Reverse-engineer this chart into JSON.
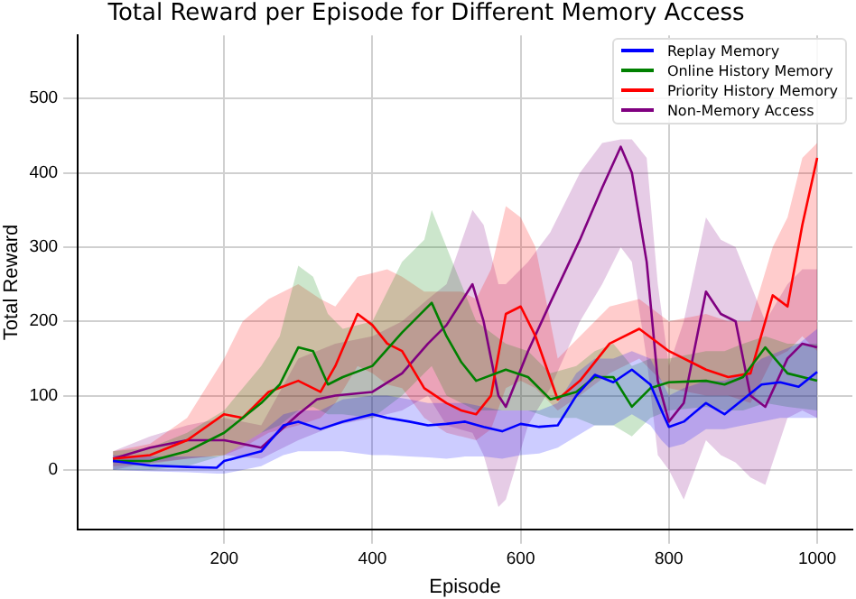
{
  "chart_data": {
    "type": "line",
    "title": "Total Reward per Episode for Different Memory Access",
    "xlabel": "Episode",
    "ylabel": "Total Reward",
    "xlim": [
      2.5,
      1047.5
    ],
    "ylim": [
      -80,
      585
    ],
    "xticks": [
      200,
      400,
      600,
      800,
      1000
    ],
    "yticks": [
      0,
      100,
      200,
      300,
      400,
      500
    ],
    "grid": true,
    "legend": "top right",
    "series": [
      {
        "name": "Replay Memory",
        "color": "#0000ff",
        "x": [
          50,
          100,
          150,
          190,
          200,
          250,
          280,
          300,
          330,
          360,
          400,
          420,
          450,
          475,
          500,
          525,
          550,
          575,
          600,
          625,
          650,
          675,
          700,
          725,
          750,
          775,
          790,
          800,
          820,
          850,
          875,
          900,
          925,
          950,
          975,
          1000
        ],
        "values": [
          12,
          6,
          4,
          3,
          12,
          25,
          60,
          65,
          55,
          65,
          75,
          70,
          65,
          60,
          62,
          65,
          58,
          52,
          62,
          58,
          60,
          100,
          128,
          118,
          135,
          115,
          80,
          58,
          65,
          90,
          75,
          95,
          115,
          118,
          112,
          132
        ],
        "lower": [
          0,
          -2,
          -3,
          -5,
          -5,
          5,
          20,
          25,
          25,
          25,
          20,
          20,
          18,
          17,
          15,
          18,
          18,
          15,
          20,
          22,
          30,
          45,
          60,
          60,
          75,
          60,
          40,
          30,
          35,
          55,
          55,
          60,
          65,
          70,
          70,
          70
        ],
        "upper": [
          20,
          18,
          18,
          18,
          20,
          50,
          75,
          80,
          80,
          95,
          100,
          100,
          95,
          90,
          90,
          90,
          85,
          80,
          80,
          80,
          90,
          130,
          150,
          150,
          160,
          150,
          120,
          100,
          110,
          120,
          120,
          130,
          150,
          160,
          170,
          190
        ]
      },
      {
        "name": "Online History Memory",
        "color": "#008000",
        "x": [
          50,
          100,
          150,
          200,
          250,
          275,
          300,
          320,
          340,
          360,
          400,
          440,
          470,
          480,
          500,
          520,
          540,
          580,
          610,
          640,
          675,
          700,
          725,
          750,
          775,
          800,
          850,
          875,
          900,
          930,
          960,
          1000
        ],
        "values": [
          12,
          12,
          25,
          50,
          90,
          115,
          165,
          160,
          115,
          125,
          140,
          185,
          215,
          225,
          180,
          145,
          120,
          135,
          125,
          95,
          105,
          125,
          125,
          85,
          110,
          118,
          120,
          115,
          125,
          165,
          130,
          120
        ],
        "lower": [
          0,
          0,
          5,
          20,
          50,
          60,
          80,
          85,
          75,
          75,
          70,
          100,
          130,
          140,
          100,
          90,
          80,
          80,
          80,
          70,
          70,
          60,
          60,
          45,
          70,
          80,
          85,
          80,
          80,
          90,
          85,
          80
        ],
        "upper": [
          25,
          30,
          50,
          80,
          140,
          180,
          275,
          260,
          210,
          190,
          200,
          280,
          310,
          350,
          300,
          250,
          200,
          170,
          160,
          130,
          140,
          160,
          170,
          140,
          150,
          150,
          160,
          160,
          170,
          180,
          170,
          170
        ]
      },
      {
        "name": "Priority History Memory",
        "color": "#ff0000",
        "x": [
          50,
          100,
          150,
          200,
          225,
          260,
          300,
          330,
          350,
          380,
          400,
          420,
          440,
          470,
          500,
          520,
          540,
          560,
          580,
          600,
          620,
          650,
          680,
          720,
          760,
          800,
          850,
          880,
          910,
          940,
          960,
          980,
          1000
        ],
        "values": [
          15,
          20,
          40,
          75,
          70,
          105,
          120,
          105,
          140,
          210,
          195,
          170,
          160,
          110,
          90,
          80,
          75,
          100,
          210,
          220,
          180,
          95,
          120,
          170,
          190,
          160,
          135,
          125,
          130,
          235,
          220,
          330,
          420
        ],
        "lower": [
          5,
          8,
          15,
          20,
          30,
          50,
          60,
          70,
          90,
          140,
          130,
          115,
          110,
          70,
          50,
          45,
          40,
          55,
          110,
          120,
          110,
          80,
          100,
          130,
          150,
          110,
          100,
          100,
          90,
          150,
          160,
          180,
          160
        ],
        "upper": [
          25,
          35,
          70,
          150,
          200,
          230,
          250,
          230,
          220,
          260,
          265,
          270,
          260,
          240,
          240,
          240,
          230,
          270,
          355,
          340,
          300,
          150,
          180,
          220,
          230,
          200,
          210,
          200,
          200,
          300,
          340,
          420,
          440
        ]
      },
      {
        "name": "Non-Memory Access",
        "color": "#800080",
        "x": [
          50,
          100,
          150,
          200,
          250,
          300,
          325,
          350,
          400,
          440,
          475,
          500,
          535,
          550,
          570,
          580,
          610,
          640,
          680,
          710,
          735,
          750,
          770,
          785,
          800,
          820,
          850,
          870,
          890,
          910,
          930,
          960,
          980,
          1000
        ],
        "values": [
          15,
          30,
          40,
          40,
          30,
          75,
          95,
          100,
          105,
          130,
          170,
          195,
          250,
          200,
          100,
          85,
          160,
          225,
          310,
          380,
          435,
          400,
          280,
          120,
          65,
          90,
          240,
          210,
          200,
          100,
          85,
          150,
          170,
          165
        ],
        "lower": [
          0,
          10,
          15,
          20,
          15,
          40,
          50,
          60,
          70,
          80,
          100,
          60,
          50,
          20,
          -50,
          -40,
          60,
          110,
          200,
          250,
          300,
          280,
          150,
          20,
          0,
          -40,
          40,
          20,
          10,
          -10,
          -20,
          70,
          80,
          70
        ],
        "upper": [
          25,
          45,
          60,
          70,
          60,
          150,
          160,
          170,
          180,
          200,
          230,
          250,
          350,
          330,
          250,
          250,
          280,
          320,
          400,
          440,
          445,
          445,
          420,
          250,
          140,
          200,
          340,
          310,
          300,
          250,
          200,
          250,
          270,
          270
        ]
      }
    ]
  }
}
